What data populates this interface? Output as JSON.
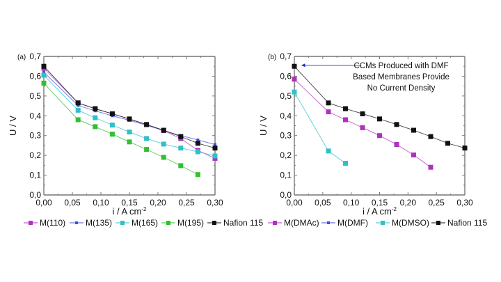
{
  "chart_data": [
    {
      "type": "line",
      "panel_label": "(a)",
      "xlabel": "i  /  A cm",
      "xlabel_sup": "-2",
      "ylabel": "U  /  V",
      "xlim": [
        0,
        0.3
      ],
      "ylim": [
        0,
        0.7
      ],
      "xticks": [
        "0,00",
        "0,05",
        "0,10",
        "0,15",
        "0,20",
        "0,25",
        "0,30"
      ],
      "yticks": [
        "0,0",
        "0,1",
        "0,2",
        "0,3",
        "0,4",
        "0,5",
        "0,6",
        "0,7"
      ],
      "legend_position": "bottom",
      "series": [
        {
          "name": "M(110)",
          "color": "#b030c0",
          "marker": "square",
          "x": [
            0,
            0.06,
            0.09,
            0.12,
            0.15,
            0.18,
            0.21,
            0.24,
            0.27,
            0.3
          ],
          "y": [
            0.64,
            0.465,
            0.435,
            0.41,
            0.383,
            0.355,
            0.325,
            0.285,
            0.225,
            0.185
          ]
        },
        {
          "name": "M(135)",
          "color": "#4050d8",
          "marker": "dot",
          "x": [
            0,
            0.06,
            0.09,
            0.12,
            0.15,
            0.18,
            0.21,
            0.24,
            0.27,
            0.3
          ],
          "y": [
            0.62,
            0.452,
            0.425,
            0.4,
            0.377,
            0.352,
            0.325,
            0.3,
            0.278,
            0.255
          ]
        },
        {
          "name": "M(165)",
          "color": "#30c0c8",
          "marker": "square",
          "x": [
            0,
            0.06,
            0.09,
            0.12,
            0.15,
            0.18,
            0.21,
            0.24,
            0.27,
            0.3
          ],
          "y": [
            0.605,
            0.428,
            0.39,
            0.353,
            0.318,
            0.285,
            0.257,
            0.237,
            0.218,
            0.197
          ]
        },
        {
          "name": "M(195)",
          "color": "#30c030",
          "marker": "square",
          "x": [
            0,
            0.06,
            0.09,
            0.12,
            0.15,
            0.18,
            0.21,
            0.24,
            0.27
          ],
          "y": [
            0.565,
            0.38,
            0.345,
            0.307,
            0.268,
            0.23,
            0.19,
            0.148,
            0.103
          ]
        },
        {
          "name": "Nafion 115",
          "color": "#111111",
          "marker": "square",
          "x": [
            0,
            0.06,
            0.09,
            0.12,
            0.15,
            0.18,
            0.21,
            0.24,
            0.27,
            0.3
          ],
          "y": [
            0.65,
            0.465,
            0.436,
            0.41,
            0.384,
            0.356,
            0.327,
            0.295,
            0.261,
            0.237
          ]
        }
      ]
    },
    {
      "type": "line",
      "panel_label": "(b)",
      "xlabel": "i  /  A cm",
      "xlabel_sup": "-2",
      "ylabel": "U  /  V",
      "xlim": [
        0,
        0.3
      ],
      "ylim": [
        0,
        0.7
      ],
      "xticks": [
        "0,00",
        "0,05",
        "0,10",
        "0,15",
        "0,20",
        "0,25",
        "0,30"
      ],
      "yticks": [
        "0,0",
        "0,1",
        "0,2",
        "0,3",
        "0,4",
        "0,5",
        "0,6",
        "0,7"
      ],
      "legend_position": "bottom",
      "annotation": [
        "CCMs Produced with DMF",
        "Based Membranes Provide",
        "No Current Density"
      ],
      "annotation_arrow_color": "#2030c0",
      "series": [
        {
          "name": "M(DMAc)",
          "color": "#b030c0",
          "marker": "square",
          "x": [
            0,
            0.06,
            0.09,
            0.12,
            0.15,
            0.18,
            0.21,
            0.24
          ],
          "y": [
            0.585,
            0.42,
            0.38,
            0.34,
            0.3,
            0.255,
            0.202,
            0.14
          ]
        },
        {
          "name": "M(DMF)",
          "color": "#4050d8",
          "marker": "dot",
          "x": [],
          "y": []
        },
        {
          "name": "M(DMSO)",
          "color": "#30c0c8",
          "marker": "square",
          "x": [
            0,
            0.06,
            0.09
          ],
          "y": [
            0.52,
            0.222,
            0.16
          ]
        },
        {
          "name": "Nafion 115",
          "color": "#111111",
          "marker": "square",
          "x": [
            0,
            0.06,
            0.09,
            0.12,
            0.15,
            0.18,
            0.21,
            0.24,
            0.27,
            0.3
          ],
          "y": [
            0.65,
            0.465,
            0.436,
            0.41,
            0.384,
            0.356,
            0.327,
            0.295,
            0.261,
            0.237
          ]
        }
      ]
    }
  ]
}
